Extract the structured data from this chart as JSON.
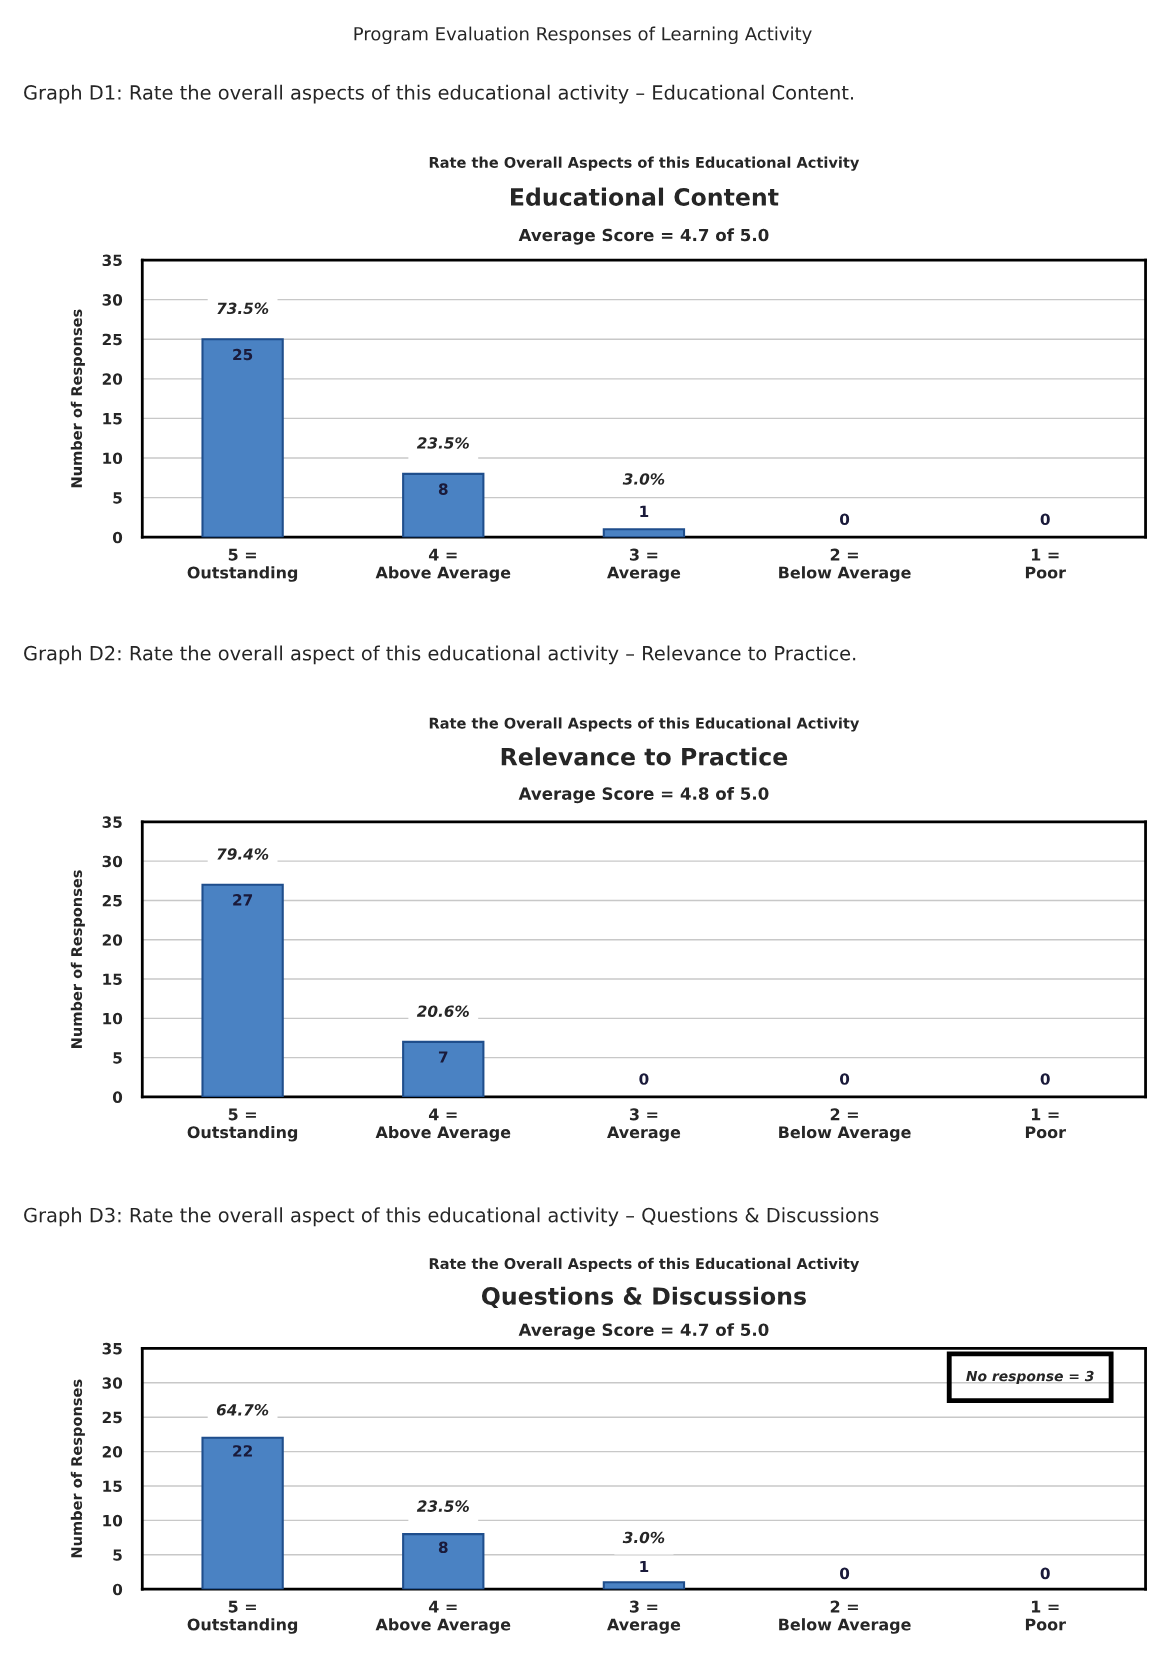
{
  "chart_data": [
    {
      "type": "bar",
      "title": "Educational Content",
      "subtitle": "Average Score = 4.7 of 5.0",
      "ylabel": "Number of Responses",
      "annotations": [
        "Program Evaluation Responses of Learning Activity",
        "Graph D1: Rate the overall aspects of this educational activity – Educational Content.",
        "Rate the Overall Aspects of this Educational Activity",
        {
          "text": "73.5%",
          "x": "5 =\nOutstanding",
          "y": 25
        },
        {
          "text": "23.5%",
          "x": "4 =\nAbove Average",
          "y": 8
        },
        {
          "text": "3.0%",
          "x": "3 =\nAverage",
          "y": 1
        }
      ],
      "categories": [
        "5 =\nOutstanding",
        "4 =\nAbove Average",
        "3 =\nAverage",
        "2 =\nBelow Average",
        "1 =\nPoor"
      ],
      "values": [
        25,
        8,
        1,
        0,
        0
      ],
      "color": "#4a82c3",
      "ylim": [
        0,
        35
      ],
      "yticks": [
        0,
        5,
        10,
        15,
        20,
        25,
        30,
        35
      ],
      "grid": "y",
      "data_labels": true,
      "legend": false
    },
    {
      "type": "bar",
      "title": "Relevance to Practice",
      "subtitle": "Average Score = 4.8 of 5.0",
      "ylabel": "Number of Responses",
      "annotations": [
        "Graph D2: Rate the overall aspect of this educational activity – Relevance to Practice.",
        "Rate the Overall Aspects of this Educational Activity",
        {
          "text": "79.4%",
          "x": "5 =\nOutstanding",
          "y": 27
        },
        {
          "text": "20.6%",
          "x": "4 =\nAbove Average",
          "y": 7
        }
      ],
      "categories": [
        "5 =\nOutstanding",
        "4 =\nAbove Average",
        "3 =\nAverage",
        "2 =\nBelow Average",
        "1 =\nPoor"
      ],
      "values": [
        27,
        7,
        0,
        0,
        0
      ],
      "color": "#4a82c3",
      "ylim": [
        0,
        35
      ],
      "yticks": [
        0,
        5,
        10,
        15,
        20,
        25,
        30,
        35
      ],
      "grid": "y",
      "data_labels": true,
      "legend": false
    },
    {
      "type": "bar",
      "title": "Questions & Discussions",
      "subtitle": "Average Score = 4.7 of 5.0",
      "ylabel": "Number of Responses",
      "annotations": [
        "Graph D3: Rate the overall aspect of this educational activity – Questions & Discussions",
        "Rate the Overall Aspects of this Educational Activity",
        "No response = 3",
        {
          "text": "64.7%",
          "x": "5 =\nOutstanding",
          "y": 22
        },
        {
          "text": "23.5%",
          "x": "4 =\nAbove Average",
          "y": 8
        },
        {
          "text": "3.0%",
          "x": "3 =\nAverage",
          "y": 1
        }
      ],
      "categories": [
        "5 =\nOutstanding",
        "4 =\nAbove Average",
        "3 =\nAverage",
        "2 =\nBelow Average",
        "1 =\nPoor"
      ],
      "values": [
        22,
        8,
        1,
        0,
        0
      ],
      "color": "#4a82c3",
      "ylim": [
        0,
        35
      ],
      "yticks": [
        0,
        5,
        10,
        15,
        20,
        25,
        30,
        35
      ],
      "grid": "y",
      "data_labels": true,
      "legend": false
    }
  ]
}
